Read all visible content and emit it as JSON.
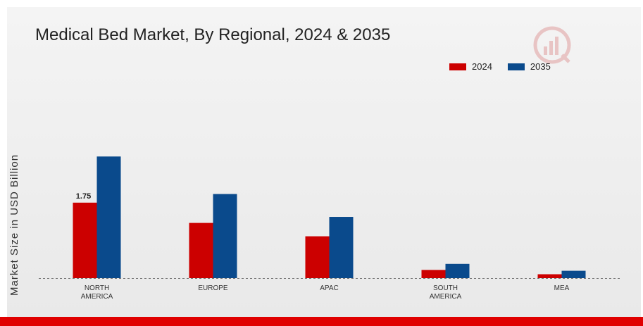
{
  "title": "Medical Bed Market, By Regional, 2024 & 2035",
  "ylabel": "Market Size in USD Billion",
  "colors": {
    "2024": "#cc0000",
    "2035": "#0a4a8c",
    "bottom_bar": "#e00000"
  },
  "chart_data": {
    "type": "bar",
    "categories": [
      "NORTH AMERICA",
      "EUROPE",
      "APAC",
      "SOUTH AMERICA",
      "MEA"
    ],
    "category_lines": [
      [
        "NORTH",
        "AMERICA"
      ],
      [
        "EUROPE"
      ],
      [
        "APAC"
      ],
      [
        "SOUTH",
        "AMERICA"
      ],
      [
        "MEA"
      ]
    ],
    "series": [
      {
        "name": "2024",
        "values": [
          1.75,
          1.28,
          0.97,
          0.19,
          0.09
        ]
      },
      {
        "name": "2035",
        "values": [
          2.82,
          1.95,
          1.42,
          0.33,
          0.17
        ]
      }
    ],
    "data_labels": [
      {
        "series": "2024",
        "category": "NORTH AMERICA",
        "text": "1.75"
      }
    ],
    "xlabel": "",
    "ylabel": "Market Size in USD Billion",
    "ylim": [
      0,
      4
    ],
    "legend": "top-right",
    "grid": false
  }
}
